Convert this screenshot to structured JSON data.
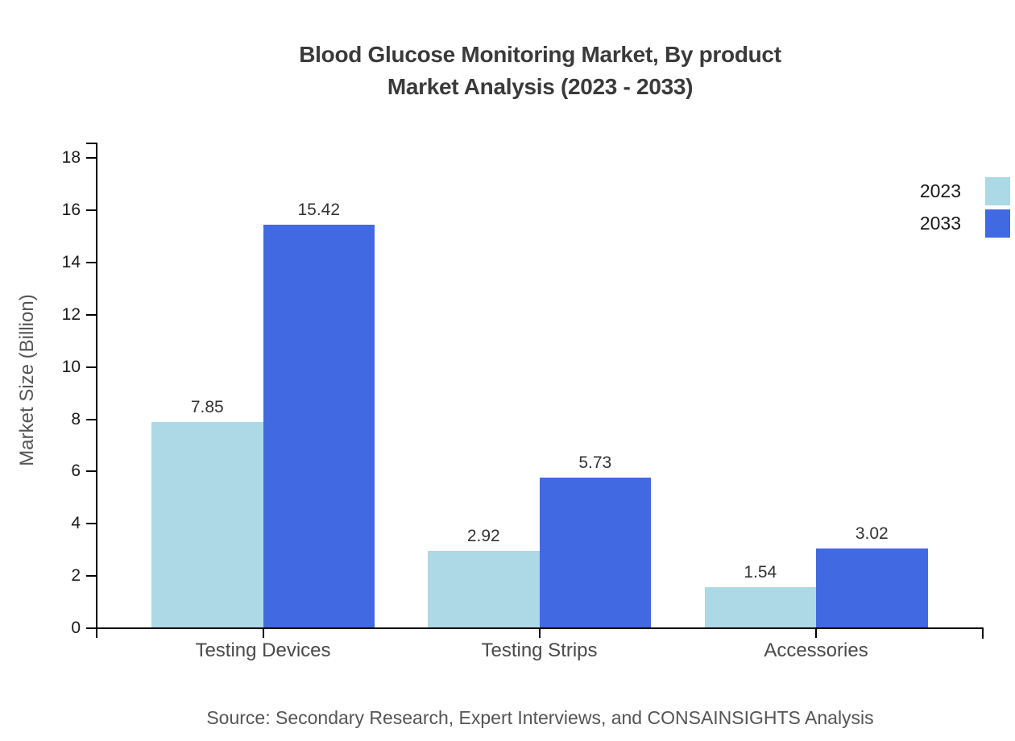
{
  "header": {
    "title_line1": "Blood Glucose Monitoring Market, By product",
    "title_line2": "Market Analysis (2023 - 2033)"
  },
  "footer": {
    "source": "Source: Secondary Research, Expert Interviews, and CONSAINSIGHTS Analysis"
  },
  "chart_data": {
    "type": "bar",
    "title": "Blood Glucose Monitoring Market, By product Market Analysis (2023 - 2033)",
    "categories": [
      "Testing Devices",
      "Testing Strips",
      "Accessories"
    ],
    "series": [
      {
        "name": "2023",
        "color": "#add8e6",
        "values": [
          7.85,
          2.92,
          1.54
        ]
      },
      {
        "name": "2033",
        "color": "#4169e1",
        "values": [
          15.42,
          5.73,
          3.02
        ]
      }
    ],
    "xlabel": "",
    "ylabel": "Market Size (Billion)",
    "ylim": [
      0,
      18
    ],
    "yticks": [
      0,
      2,
      4,
      6,
      8,
      10,
      12,
      14,
      16,
      18
    ],
    "grid": false,
    "legend_position": "top-right",
    "value_labels_shown": true,
    "value_label_format": "2-decimals"
  },
  "colors": {
    "series_2023": "#add8e6",
    "series_2033": "#4169e1",
    "axis": "#000000",
    "title_text": "#3a3a3a",
    "tick_text": "#1a1a1a",
    "category_text": "#4a4a4a",
    "muted_text": "#555555",
    "background": "#ffffff"
  }
}
